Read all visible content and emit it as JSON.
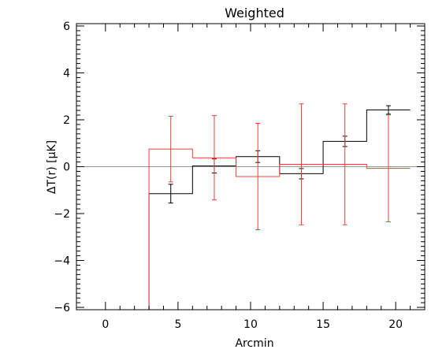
{
  "chart_data": {
    "type": "step",
    "title": "Weighted",
    "xlabel": "Arcmin",
    "ylabel": "ΔT(r) [μK]",
    "xlim": [
      -2,
      22
    ],
    "ylim": [
      -6.1,
      6.1
    ],
    "xticks": [
      0,
      5,
      10,
      15,
      20
    ],
    "yticks": [
      -6,
      -4,
      -2,
      0,
      2,
      4,
      6
    ],
    "xtick_labels": [
      "0",
      "5",
      "10",
      "15",
      "20"
    ],
    "ytick_labels": [
      "−6",
      "−4",
      "−2",
      "0",
      "2",
      "4",
      "6"
    ],
    "reference_line": {
      "y": 0,
      "color": "#999999"
    },
    "series": [
      {
        "color": "#000000",
        "bins": [
          {
            "x0": 3,
            "x1": 6,
            "y": -1.15,
            "xc": 4.5,
            "err": 0.4
          },
          {
            "x0": 6,
            "x1": 9,
            "y": 0.03,
            "xc": 7.5,
            "err": 0.3
          },
          {
            "x0": 9,
            "x1": 12,
            "y": 0.43,
            "xc": 10.5,
            "err": 0.25
          },
          {
            "x0": 12,
            "x1": 15,
            "y": -0.3,
            "xc": 13.5,
            "err": 0.22
          },
          {
            "x0": 15,
            "x1": 18,
            "y": 1.08,
            "xc": 16.5,
            "err": 0.22
          },
          {
            "x0": 18,
            "x1": 21,
            "y": 2.42,
            "xc": 19.5,
            "err": 0.18
          }
        ]
      },
      {
        "color": "#e8413a",
        "bins": [
          {
            "x0": 3,
            "x1": 6,
            "y": 0.75,
            "xc": 4.5,
            "err": 1.4
          },
          {
            "x0": 6,
            "x1": 9,
            "y": 0.38,
            "xc": 7.5,
            "err": 1.8
          },
          {
            "x0": 9,
            "x1": 12,
            "y": -0.42,
            "xc": 10.5,
            "err": 2.27
          },
          {
            "x0": 12,
            "x1": 15,
            "y": 0.1,
            "xc": 13.5,
            "err": 2.58
          },
          {
            "x0": 15,
            "x1": 18,
            "y": 0.1,
            "xc": 16.5,
            "err": 2.58
          },
          {
            "x0": 18,
            "x1": 21,
            "y": -0.07,
            "xc": 19.5,
            "err": 2.28
          }
        ]
      }
    ]
  }
}
